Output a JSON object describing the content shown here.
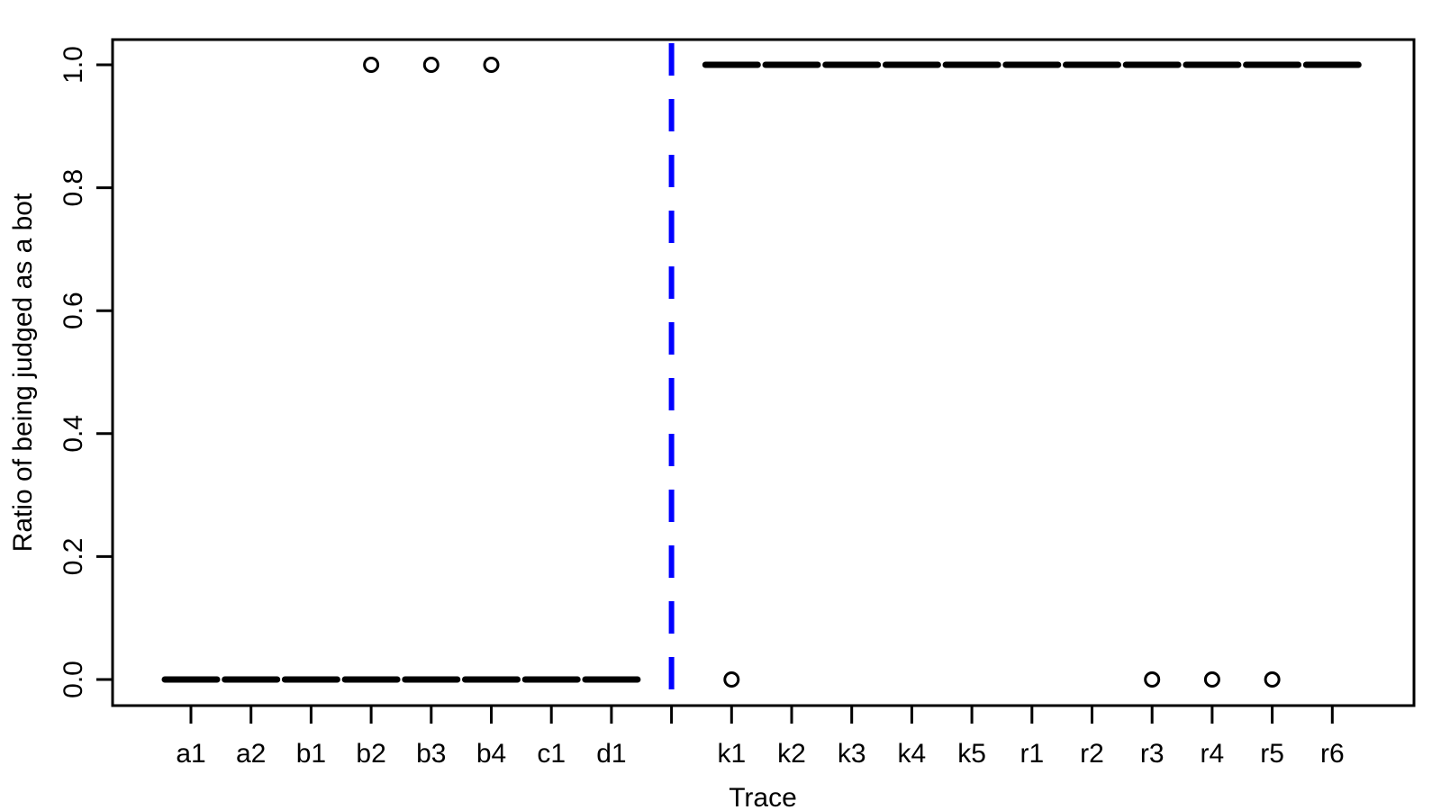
{
  "chart_data": {
    "type": "scatter",
    "title": "",
    "xlabel": "Trace",
    "ylabel": "Ratio of being judged as a bot",
    "ylim": [
      -0.04,
      1.04
    ],
    "yticks": [
      0.0,
      0.2,
      0.4,
      0.6,
      0.8,
      1.0
    ],
    "ytick_labels": [
      "0.0",
      "0.2",
      "0.4",
      "0.6",
      "0.8",
      "1.0"
    ],
    "grid": false,
    "legend": "none",
    "categories": [
      "a1",
      "a2",
      "b1",
      "b2",
      "b3",
      "b4",
      "c1",
      "d1",
      "",
      "k1",
      "k2",
      "k3",
      "k4",
      "k5",
      "r1",
      "r2",
      "r3",
      "r4",
      "r5",
      "r6"
    ],
    "medians": [
      0,
      0,
      0,
      0,
      0,
      0,
      0,
      0,
      null,
      1,
      1,
      1,
      1,
      1,
      1,
      1,
      1,
      1,
      1,
      1
    ],
    "outliers": [
      {
        "category": "b2",
        "value": 1.0
      },
      {
        "category": "b3",
        "value": 1.0
      },
      {
        "category": "b4",
        "value": 1.0
      },
      {
        "category": "k1",
        "value": 0.0
      },
      {
        "category": "r3",
        "value": 0.0
      },
      {
        "category": "r4",
        "value": 0.0
      },
      {
        "category": "r5",
        "value": 0.0
      }
    ],
    "separator": {
      "after_category": "d1",
      "color": "#0000ff",
      "style": "dashed"
    },
    "colors": {
      "median": "#000000",
      "outlier": "#000000",
      "separator": "#0000ff"
    }
  }
}
